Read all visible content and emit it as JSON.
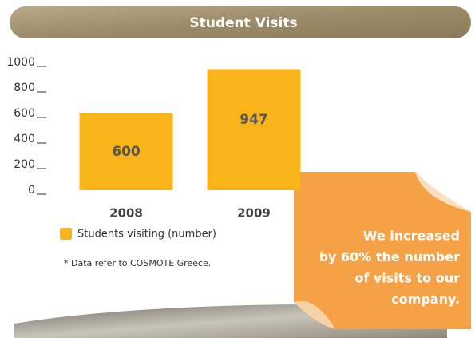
{
  "chart_data": {
    "type": "bar",
    "title": "Student Visits",
    "categories": [
      "2008",
      "2009"
    ],
    "series": [
      {
        "name": "Students visiting (number)",
        "color": "#f8b418",
        "values": [
          600,
          947
        ]
      }
    ],
    "ylim": [
      0,
      1000
    ],
    "yticks": [
      0,
      200,
      400,
      600,
      800,
      1000
    ],
    "footnote": "* Data refer to COSMOTE Greece.",
    "callout": [
      "We increased",
      "by 60% the number",
      "of visits to our",
      "company."
    ]
  }
}
